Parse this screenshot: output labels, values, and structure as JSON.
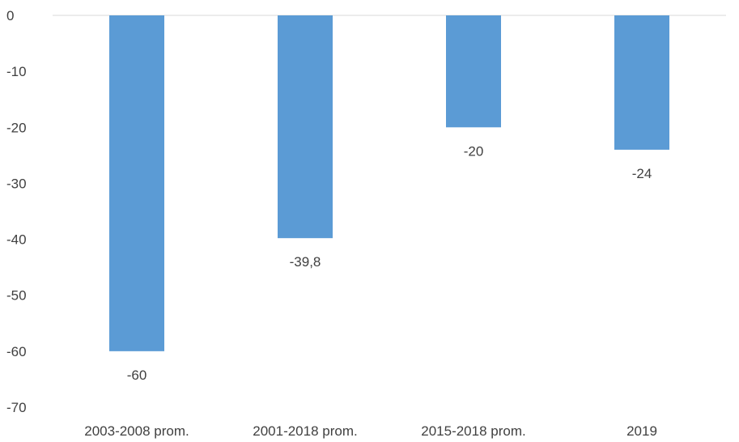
{
  "chart_data": {
    "type": "bar",
    "title": "",
    "xlabel": "",
    "ylabel": "",
    "categories": [
      "2003-2008 prom.",
      "2001-2018 prom.",
      "2015-2018 prom.",
      "2019"
    ],
    "values": [
      -60,
      -39.8,
      -20,
      -24
    ],
    "value_labels": [
      "-60",
      "-39,8",
      "-20",
      "-24"
    ],
    "yticks": [
      0,
      -10,
      -20,
      -30,
      -40,
      -50,
      -60,
      -70
    ],
    "ylim": [
      -70,
      0
    ],
    "grid": false,
    "legend": "none",
    "bar_color": "#5b9bd5",
    "zero_line_color": "#d9d9d9"
  }
}
